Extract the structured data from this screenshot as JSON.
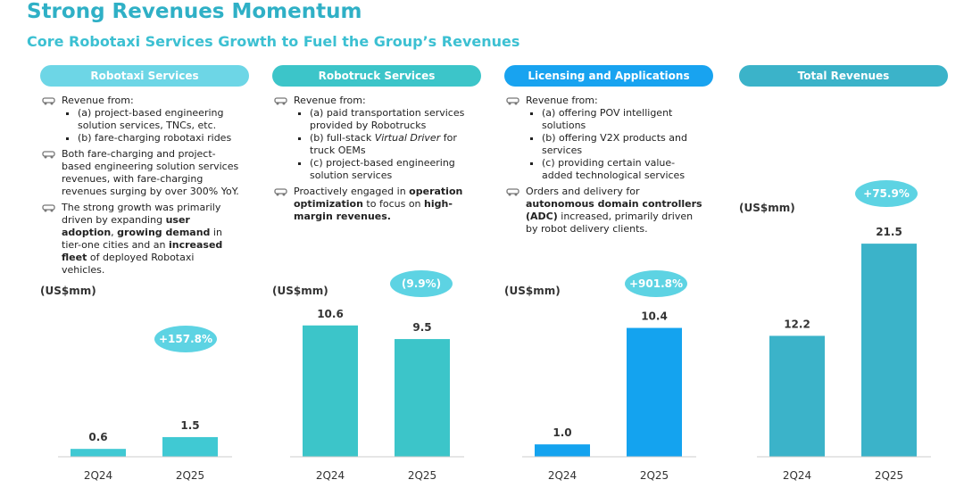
{
  "title": "Strong Revenues Momentum",
  "subtitle": "Core Robotaxi Services Growth to Fuel the Group’s Revenues",
  "chart_data": [
    {
      "type": "bar",
      "title": "Robotaxi Services",
      "header_color": "#6dd6e6",
      "color": "#40c9d3",
      "unit_label": "(US$mm)",
      "change_label": "+157.8%",
      "categories": [
        "2Q24",
        "2Q25"
      ],
      "values": [
        0.6,
        1.5
      ],
      "ylim": [
        0,
        17
      ],
      "blocks": [
        {
          "segments": [
            {
              "text": "Revenue from:"
            }
          ],
          "items": [
            [
              {
                "text": "(a) project-based engineering solution services, TNCs, etc."
              }
            ],
            [
              {
                "text": "(b) fare-charging robotaxi rides"
              }
            ]
          ]
        },
        {
          "segments": [
            {
              "text": "Both fare-charging and project-based engineering solution services revenues, with fare-charging revenues surging by over 300% YoY."
            }
          ]
        },
        {
          "segments": [
            {
              "text": "The strong growth was primarily driven by expanding "
            },
            {
              "text": "user adoption",
              "style": "bold"
            },
            {
              "text": ", "
            },
            {
              "text": "growing demand",
              "style": "bold"
            },
            {
              "text": " in tier-one cities and an "
            },
            {
              "text": "increased fleet",
              "style": "bold"
            },
            {
              "text": " of deployed Robotaxi vehicles."
            }
          ]
        }
      ]
    },
    {
      "type": "bar",
      "title": "Robotruck Services",
      "header_color": "#3cc5c9",
      "color": "#3cc5c9",
      "unit_label": "(US$mm)",
      "change_label": "(9.9%)",
      "categories": [
        "2Q24",
        "2Q25"
      ],
      "values": [
        10.6,
        9.5
      ],
      "ylim": [
        0,
        18
      ],
      "blocks": [
        {
          "segments": [
            {
              "text": "Revenue from:"
            }
          ],
          "items": [
            [
              {
                "text": "(a) paid transportation services provided by Robotrucks"
              }
            ],
            [
              {
                "text": "(b) full-stack "
              },
              {
                "text": "Virtual Driver",
                "style": "italic"
              },
              {
                "text": " for truck OEMs"
              }
            ],
            [
              {
                "text": "(c) project-based engineering solution services"
              }
            ]
          ]
        },
        {
          "segments": [
            {
              "text": "Proactively engaged in "
            },
            {
              "text": "operation optimization",
              "style": "bold"
            },
            {
              "text": " to focus on "
            },
            {
              "text": "high-margin revenues.",
              "style": "bold"
            }
          ]
        }
      ]
    },
    {
      "type": "bar",
      "title": "Licensing and Applications",
      "header_color": "#18a3f0",
      "color": "#14a3ef",
      "unit_label": "(US$mm)",
      "change_label": "+901.8%",
      "categories": [
        "2Q24",
        "2Q25"
      ],
      "values": [
        1.0,
        10.4
      ],
      "ylim": [
        0,
        18
      ],
      "value_labels": [
        "1.0",
        "10.4"
      ],
      "blocks": [
        {
          "segments": [
            {
              "text": "Revenue from:"
            }
          ],
          "items": [
            [
              {
                "text": "(a) offering POV intelligent solutions"
              }
            ],
            [
              {
                "text": "(b) offering V2X products and services"
              }
            ],
            [
              {
                "text": "(c) providing certain value-added technological services"
              }
            ]
          ]
        },
        {
          "segments": [
            {
              "text": "Orders and delivery for "
            },
            {
              "text": "autonomous domain controllers (ADC)",
              "style": "bold"
            },
            {
              "text": " increased, primarily driven by robot delivery clients."
            }
          ]
        }
      ]
    },
    {
      "type": "bar",
      "title": "Total Revenues",
      "header_color": "#3bb3c9",
      "color": "#3bb3c9",
      "unit_label": "(US$mm)",
      "change_label": "+75.9%",
      "categories": [
        "2Q24",
        "2Q25"
      ],
      "values": [
        12.2,
        21.5
      ],
      "ylim": [
        0,
        22.5
      ]
    }
  ]
}
